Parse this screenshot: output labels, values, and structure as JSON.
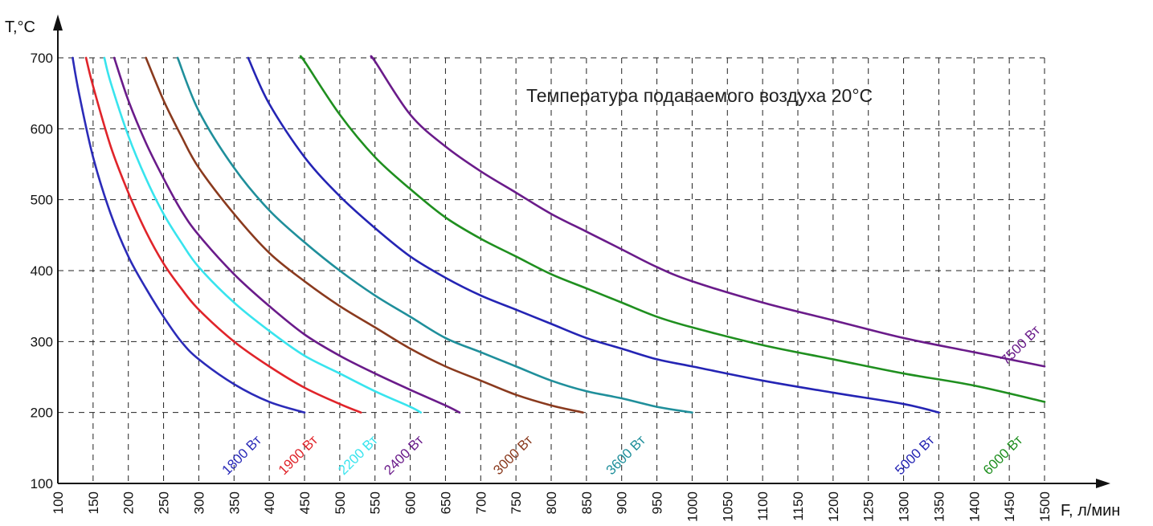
{
  "chart_data": {
    "type": "line",
    "title": "Температура подаваемого воздуха 20°C",
    "xlabel": "F, л/мин",
    "ylabel": "T,°C",
    "xlim": [
      100,
      1500
    ],
    "ylim": [
      100,
      700
    ],
    "x_ticks": [
      100,
      150,
      200,
      250,
      300,
      350,
      400,
      450,
      500,
      550,
      600,
      650,
      700,
      750,
      800,
      850,
      900,
      950,
      1000,
      1050,
      1100,
      1150,
      1200,
      1250,
      1300,
      1350,
      1400,
      1450,
      1500
    ],
    "y_ticks": [
      100,
      200,
      300,
      400,
      500,
      600,
      700
    ],
    "x_tick_labels": [
      "100",
      "150",
      "200",
      "250",
      "300",
      "350",
      "400",
      "450",
      "500",
      "550",
      "600",
      "650",
      "700",
      "750",
      "800",
      "850",
      "900",
      "950",
      "1000",
      "1050",
      "1100",
      "1150",
      "1200",
      "1250",
      "1300",
      "1350",
      "1400",
      "1450",
      "1500"
    ],
    "y_tick_labels": [
      "100",
      "200",
      "300",
      "400",
      "500",
      "600",
      "700"
    ],
    "grid": "dashed",
    "series": [
      {
        "name": "1800 Вт",
        "color": "#2b2bb8",
        "x": [
          121,
          130,
          150,
          175,
          200,
          225,
          250,
          275,
          300,
          350,
          400,
          450
        ],
        "y": [
          700,
          650,
          560,
          480,
          420,
          375,
          335,
          300,
          275,
          240,
          215,
          200
        ]
      },
      {
        "name": "1900 Вт",
        "color": "#e0242a",
        "x": [
          140,
          150,
          175,
          200,
          225,
          250,
          275,
          300,
          350,
          400,
          450,
          500,
          530
        ],
        "y": [
          700,
          660,
          575,
          510,
          455,
          410,
          375,
          345,
          300,
          265,
          235,
          212,
          200
        ]
      },
      {
        "name": "2200 Вт",
        "color": "#38e4ee",
        "x": [
          166,
          175,
          200,
          225,
          250,
          275,
          300,
          350,
          400,
          450,
          500,
          550,
          600,
          615
        ],
        "y": [
          700,
          665,
          590,
          530,
          480,
          440,
          405,
          355,
          315,
          280,
          255,
          230,
          208,
          200
        ]
      },
      {
        "name": "2400 Вт",
        "color": "#6a1b8a",
        "x": [
          180,
          200,
          225,
          250,
          275,
          300,
          350,
          400,
          450,
          500,
          550,
          600,
          650,
          670
        ],
        "y": [
          700,
          640,
          580,
          530,
          485,
          450,
          395,
          350,
          310,
          280,
          255,
          232,
          210,
          200
        ]
      },
      {
        "name": "3000 Вт",
        "color": "#8a3a1e",
        "x": [
          225,
          250,
          275,
          300,
          350,
          400,
          450,
          500,
          550,
          600,
          650,
          700,
          750,
          800,
          845
        ],
        "y": [
          700,
          640,
          590,
          545,
          480,
          425,
          385,
          350,
          320,
          290,
          265,
          245,
          225,
          210,
          200
        ]
      },
      {
        "name": "3600 Вт",
        "color": "#1f8f9b",
        "x": [
          270,
          300,
          350,
          400,
          450,
          500,
          550,
          600,
          650,
          700,
          750,
          800,
          850,
          900,
          950,
          1000
        ],
        "y": [
          700,
          625,
          545,
          485,
          440,
          400,
          365,
          335,
          305,
          285,
          265,
          245,
          230,
          220,
          208,
          200
        ]
      },
      {
        "name": "5000 Вт",
        "color": "#2424b4",
        "x": [
          370,
          400,
          450,
          500,
          550,
          600,
          650,
          700,
          750,
          800,
          850,
          900,
          950,
          1000,
          1100,
          1200,
          1300,
          1350
        ],
        "y": [
          700,
          635,
          560,
          505,
          460,
          420,
          390,
          365,
          345,
          325,
          305,
          290,
          275,
          265,
          245,
          228,
          212,
          200
        ]
      },
      {
        "name": "6000 Вт",
        "color": "#1f8f1f",
        "x": [
          445,
          450,
          500,
          550,
          600,
          650,
          700,
          750,
          800,
          850,
          900,
          950,
          1000,
          1100,
          1200,
          1300,
          1400,
          1500
        ],
        "y": [
          700,
          695,
          620,
          560,
          515,
          475,
          445,
          420,
          395,
          375,
          355,
          335,
          320,
          295,
          275,
          255,
          238,
          215
        ]
      },
      {
        "name": "7500 Вт",
        "color": "#6a1b8a",
        "x": [
          545,
          550,
          600,
          650,
          700,
          750,
          800,
          850,
          900,
          950,
          1000,
          1100,
          1200,
          1300,
          1400,
          1500
        ],
        "y": [
          700,
          695,
          620,
          575,
          540,
          510,
          480,
          455,
          430,
          405,
          385,
          355,
          330,
          305,
          285,
          265
        ]
      }
    ]
  },
  "series_label_slots": [
    {
      "name": "1800 Вт",
      "x": 390,
      "y": 160
    },
    {
      "name": "1900 Вт",
      "x": 470,
      "y": 160
    },
    {
      "name": "2200 Вт",
      "x": 555,
      "y": 160
    },
    {
      "name": "2400 Вт",
      "x": 620,
      "y": 160
    },
    {
      "name": "3000 Вт",
      "x": 775,
      "y": 160
    },
    {
      "name": "3600 Вт",
      "x": 935,
      "y": 160
    },
    {
      "name": "5000 Вт",
      "x": 1345,
      "y": 160
    },
    {
      "name": "6000 Вт",
      "x": 1470,
      "y": 160
    },
    {
      "name": "7500 Вт",
      "x": 1495,
      "y": 315
    }
  ]
}
